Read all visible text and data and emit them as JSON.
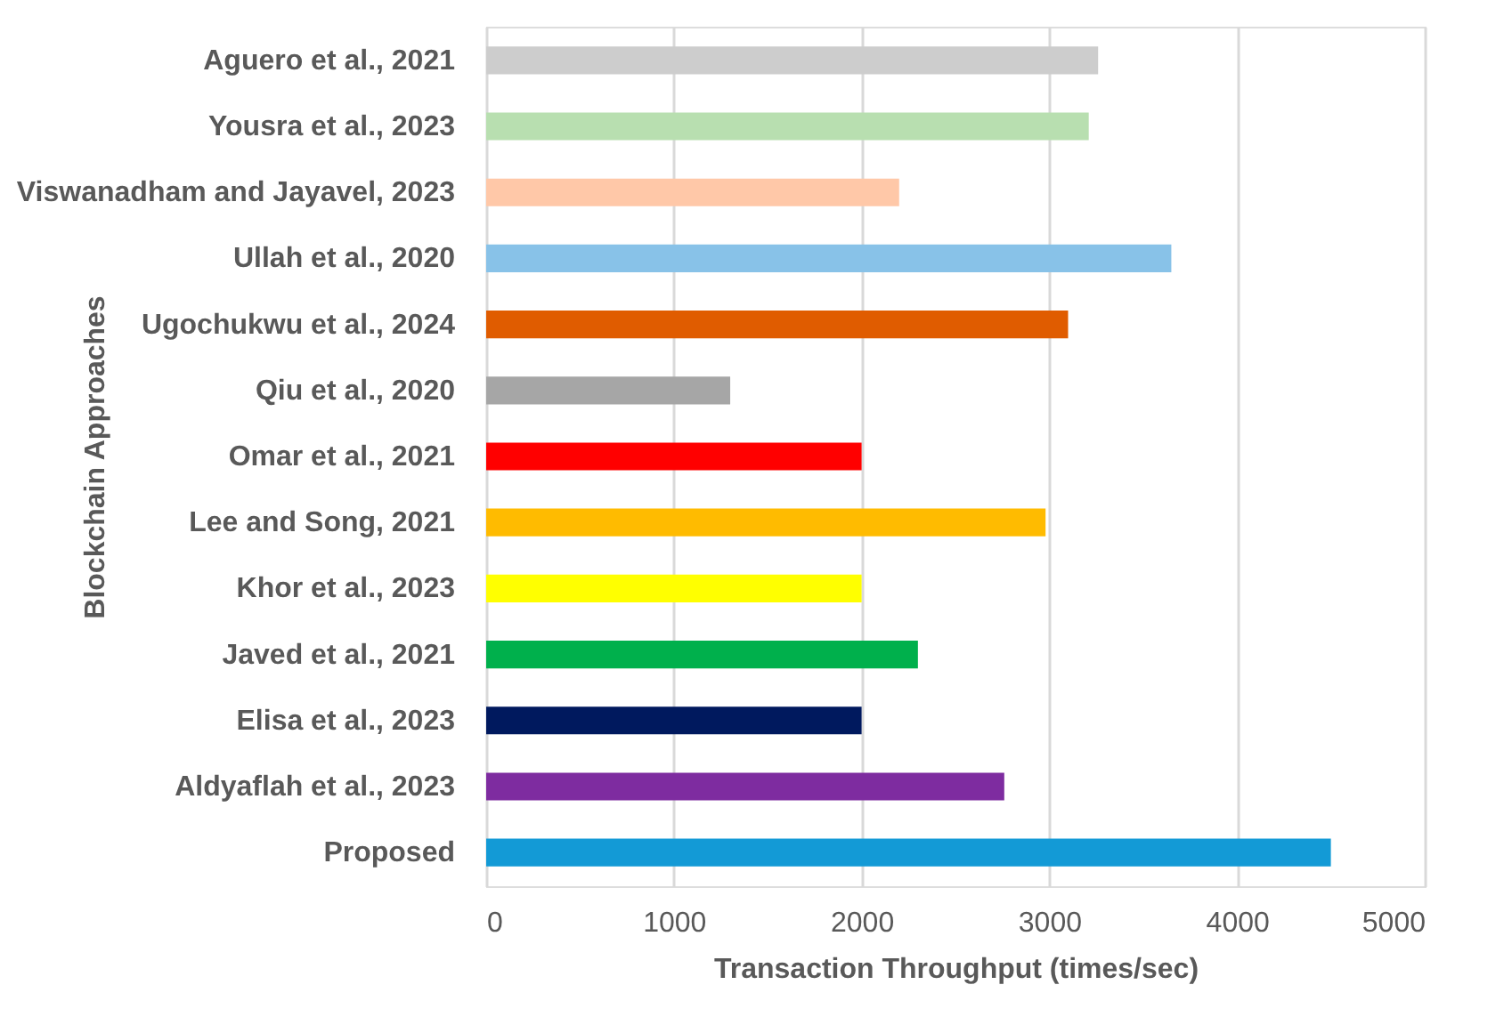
{
  "chart_data": {
    "type": "bar",
    "orientation": "horizontal",
    "xlabel": "Transaction Throughput (times/sec)",
    "ylabel": "Blockchain Approaches",
    "categories": [
      "Aguero et al., 2021",
      "Yousra et al., 2023",
      "Viswanadham and Jayavel, 2023",
      "Ullah et al., 2020",
      "Ugochukwu et al., 2024",
      "Qiu et al., 2020",
      "Omar et al., 2021",
      "Lee and Song, 2021",
      "Khor et al., 2023",
      "Javed et al., 2021",
      "Elisa et al., 2023",
      "Aldyaflah et al., 2023",
      "Proposed"
    ],
    "values": [
      3260,
      3210,
      2200,
      3650,
      3100,
      1300,
      2000,
      2980,
      2000,
      2300,
      2000,
      2760,
      4500
    ],
    "colors": [
      "#cdcdcd",
      "#b8dfb0",
      "#ffc8a8",
      "#88c2e8",
      "#e05c00",
      "#a6a6a6",
      "#ff0000",
      "#ffbb00",
      "#ffff00",
      "#00b04c",
      "#00195e",
      "#7e2ca0",
      "#139ad6"
    ],
    "xlim": [
      0,
      5000
    ],
    "xticks": [
      0,
      1000,
      2000,
      3000,
      4000,
      5000
    ],
    "grid": "x"
  }
}
